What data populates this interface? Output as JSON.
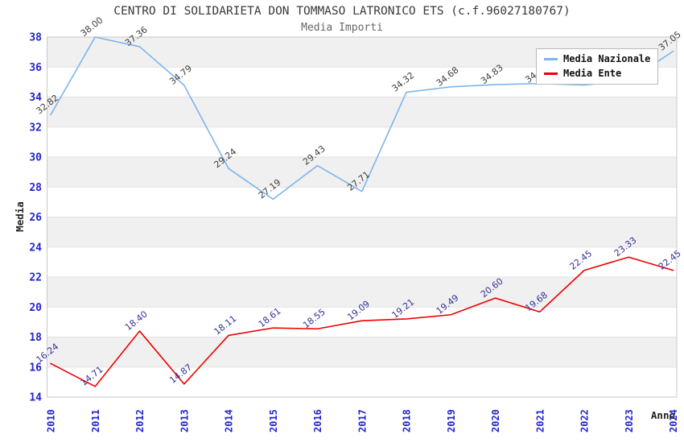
{
  "header": {
    "title": "CENTRO DI SOLIDARIETA DON TOMMASO LATRONICO ETS (c.f.96027180767)",
    "subtitle": "Media Importi"
  },
  "legend": {
    "position": "top-right",
    "items": [
      {
        "label": "Media Nazionale",
        "color": "#7cb5ec"
      },
      {
        "label": "Media Ente",
        "color": "#ee0000"
      }
    ]
  },
  "chart_data": {
    "type": "line",
    "title": "CENTRO DI SOLIDARIETA DON TOMMASO LATRONICO ETS (c.f.96027180767)",
    "subtitle": "Media Importi",
    "xlabel": "Anno",
    "ylabel": "Media",
    "ylim": [
      14,
      38
    ],
    "ytick_step": 2,
    "grid": "horizontal-bands-alternating",
    "band_colors": [
      "#f0f0f0",
      "#ffffff"
    ],
    "gridline_color": "#e2e2e2",
    "border_color": "#c9c9c9",
    "tick_label_color": "#2424cc",
    "legend_position": "top-right",
    "x": [
      "2010",
      "2011",
      "2012",
      "2013",
      "2014",
      "2015",
      "2016",
      "2017",
      "2018",
      "2019",
      "2020",
      "2021",
      "2022",
      "2023",
      "2024"
    ],
    "series": [
      {
        "name": "Media Nazionale",
        "color": "#7cb5ec",
        "label_color": "#404040",
        "values": [
          32.82,
          38.0,
          37.36,
          34.79,
          29.24,
          27.19,
          29.43,
          27.71,
          34.32,
          34.68,
          34.83,
          34.9,
          34.8,
          35.1,
          37.05
        ],
        "label_hidden_indices": [
          12,
          13
        ]
      },
      {
        "name": "Media Ente",
        "color": "#ee0000",
        "label_color": "#333399",
        "values": [
          16.24,
          14.71,
          18.4,
          14.87,
          18.11,
          18.61,
          18.55,
          19.09,
          19.21,
          19.49,
          20.6,
          19.68,
          22.45,
          23.33,
          22.45
        ],
        "label_hidden_indices": []
      }
    ]
  }
}
